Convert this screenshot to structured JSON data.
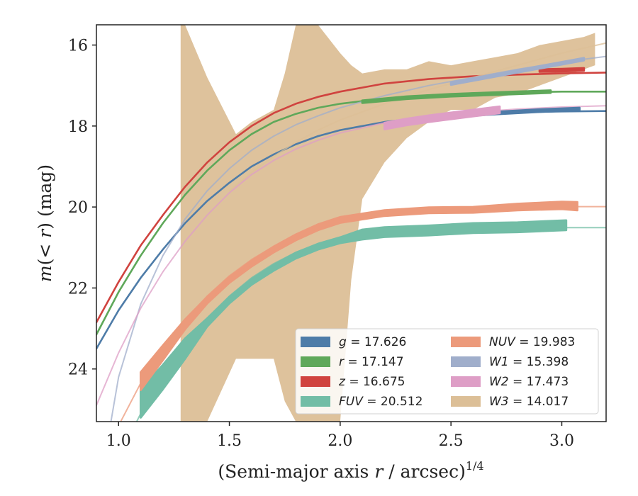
{
  "chart_data": {
    "type": "line",
    "xlabel_text": "(Semi-major axis ",
    "xlabel_var": "r",
    "xlabel_rest": " / arcsec)",
    "xlabel_sup": "1/4",
    "ylabel_pre": "m",
    "ylabel_mid": "(< ",
    "ylabel_var": "r",
    "ylabel_post": ") (mag)",
    "xlim": [
      0.9,
      3.2
    ],
    "ylim": [
      25.3,
      15.5
    ],
    "y_inverted": true,
    "xticks": [
      1.0,
      1.5,
      2.0,
      2.5,
      3.0
    ],
    "xtick_labels": [
      "1.0",
      "1.5",
      "2.0",
      "2.5",
      "3.0"
    ],
    "yticks": [
      16,
      18,
      20,
      22,
      24
    ],
    "ytick_labels": [
      "16",
      "18",
      "20",
      "22",
      "24"
    ],
    "grid": false,
    "legend_position": "lower-right",
    "series": [
      {
        "name": "g",
        "label_var": "g",
        "label_val": " = 17.626",
        "color": "#4e7ca8",
        "model_x": [
          0.9,
          1.0,
          1.1,
          1.2,
          1.3,
          1.4,
          1.5,
          1.6,
          1.7,
          1.8,
          1.9,
          2.0,
          2.2,
          2.4,
          2.6,
          2.8,
          3.0,
          3.2
        ],
        "model_y": [
          23.5,
          22.55,
          21.75,
          21.05,
          20.4,
          19.85,
          19.4,
          19.0,
          18.7,
          18.45,
          18.25,
          18.1,
          17.9,
          17.78,
          17.7,
          17.66,
          17.64,
          17.63
        ],
        "data_x": [
          2.5,
          2.7,
          2.9,
          3.08
        ],
        "data_y": [
          17.75,
          17.68,
          17.62,
          17.58
        ],
        "data_halfwidth": [
          0.03,
          0.03,
          0.03,
          0.03
        ]
      },
      {
        "name": "r",
        "label_var": "r",
        "label_val": " = 17.147",
        "color": "#5fa85a",
        "model_x": [
          0.9,
          1.0,
          1.1,
          1.2,
          1.3,
          1.4,
          1.5,
          1.6,
          1.7,
          1.8,
          1.9,
          2.0,
          2.2,
          2.4,
          2.6,
          2.8,
          3.0,
          3.2
        ],
        "model_y": [
          23.15,
          22.1,
          21.2,
          20.4,
          19.7,
          19.1,
          18.6,
          18.2,
          17.9,
          17.7,
          17.55,
          17.45,
          17.32,
          17.24,
          17.19,
          17.17,
          17.15,
          17.15
        ],
        "data_x": [
          2.1,
          2.3,
          2.5,
          2.7,
          2.95
        ],
        "data_y": [
          17.4,
          17.3,
          17.24,
          17.2,
          17.15
        ],
        "data_halfwidth": [
          0.03,
          0.03,
          0.03,
          0.03,
          0.03
        ]
      },
      {
        "name": "z",
        "label_var": "z",
        "label_val": " = 16.675",
        "color": "#d0433f",
        "model_x": [
          0.9,
          1.0,
          1.1,
          1.2,
          1.3,
          1.4,
          1.5,
          1.6,
          1.7,
          1.8,
          1.9,
          2.0,
          2.2,
          2.4,
          2.6,
          2.8,
          3.0,
          3.2
        ],
        "model_y": [
          22.85,
          21.85,
          20.95,
          20.2,
          19.5,
          18.9,
          18.4,
          18.0,
          17.68,
          17.45,
          17.28,
          17.15,
          16.95,
          16.84,
          16.77,
          16.73,
          16.7,
          16.68
        ],
        "data_x": [
          2.9,
          3.0,
          3.1
        ],
        "data_y": [
          16.63,
          16.62,
          16.6
        ],
        "data_halfwidth": [
          0.03,
          0.03,
          0.03
        ]
      },
      {
        "name": "FUV",
        "label_var": "FUV",
        "label_val": " = 20.512",
        "color": "#72bda6",
        "model_x": [
          1.0,
          1.1,
          1.2,
          1.3,
          1.4,
          1.5,
          1.6,
          1.7,
          1.8,
          1.9,
          2.0,
          2.2,
          2.4,
          2.6,
          2.8,
          3.0,
          3.2
        ],
        "model_y": [
          26.2,
          25.1,
          24.2,
          23.4,
          22.75,
          22.2,
          21.75,
          21.4,
          21.12,
          20.92,
          20.78,
          20.64,
          20.57,
          20.54,
          20.52,
          20.51,
          20.51
        ],
        "data_x": [
          1.1,
          1.2,
          1.3,
          1.4,
          1.5,
          1.6,
          1.7,
          1.8,
          1.9,
          2.0,
          2.1,
          2.2,
          2.4,
          2.6,
          2.8,
          3.02
        ],
        "data_y": [
          24.85,
          24.2,
          23.5,
          22.85,
          22.3,
          21.85,
          21.5,
          21.2,
          20.98,
          20.82,
          20.68,
          20.62,
          20.58,
          20.52,
          20.5,
          20.45
        ],
        "data_halfwidth": [
          0.35,
          0.3,
          0.25,
          0.1,
          0.08,
          0.07,
          0.07,
          0.07,
          0.07,
          0.07,
          0.12,
          0.12,
          0.12,
          0.12,
          0.12,
          0.12
        ]
      },
      {
        "name": "NUV",
        "label_var": "NUV",
        "label_val": " = 19.983",
        "color": "#ec9a7b",
        "model_x": [
          1.0,
          1.1,
          1.2,
          1.3,
          1.4,
          1.5,
          1.6,
          1.7,
          1.8,
          1.9,
          2.0,
          2.2,
          2.4,
          2.6,
          2.8,
          3.0,
          3.2
        ],
        "model_y": [
          25.4,
          24.35,
          23.5,
          22.8,
          22.2,
          21.7,
          21.3,
          20.97,
          20.7,
          20.5,
          20.35,
          20.17,
          20.07,
          20.02,
          20.0,
          19.99,
          19.99
        ],
        "data_x": [
          1.1,
          1.2,
          1.3,
          1.4,
          1.5,
          1.6,
          1.7,
          1.8,
          1.9,
          2.0,
          2.2,
          2.4,
          2.6,
          2.8,
          3.0,
          3.07
        ],
        "data_y": [
          24.3,
          23.6,
          22.9,
          22.3,
          21.8,
          21.4,
          21.05,
          20.75,
          20.5,
          20.32,
          20.15,
          20.08,
          20.07,
          20.0,
          19.96,
          19.98
        ],
        "data_halfwidth": [
          0.22,
          0.18,
          0.12,
          0.08,
          0.07,
          0.07,
          0.07,
          0.07,
          0.07,
          0.07,
          0.07,
          0.07,
          0.07,
          0.08,
          0.09,
          0.1
        ]
      },
      {
        "name": "W1",
        "label_var": "W1",
        "label_val": " = 15.398",
        "color": "#a0aecb",
        "model_x": [
          0.95,
          1.0,
          1.1,
          1.2,
          1.3,
          1.4,
          1.5,
          1.6,
          1.7,
          1.8,
          1.9,
          2.0,
          2.2,
          2.4,
          2.6,
          2.8,
          3.0,
          3.2
        ],
        "model_y": [
          25.8,
          24.2,
          22.4,
          21.2,
          20.3,
          19.6,
          19.05,
          18.6,
          18.25,
          17.97,
          17.75,
          17.55,
          17.25,
          17.0,
          16.8,
          16.6,
          16.42,
          16.28
        ],
        "data_x": [
          2.5,
          2.7,
          2.9,
          3.1
        ],
        "data_y": [
          16.95,
          16.75,
          16.55,
          16.35
        ],
        "data_halfwidth": [
          0.03,
          0.03,
          0.03,
          0.03
        ]
      },
      {
        "name": "W2",
        "label_var": "W2",
        "label_val": " = 17.473",
        "color": "#de9ec6",
        "model_x": [
          0.9,
          1.0,
          1.1,
          1.2,
          1.3,
          1.4,
          1.5,
          1.6,
          1.7,
          1.8,
          1.9,
          2.0,
          2.2,
          2.4,
          2.6,
          2.8,
          3.0,
          3.2
        ],
        "model_y": [
          24.9,
          23.6,
          22.5,
          21.6,
          20.85,
          20.2,
          19.65,
          19.2,
          18.85,
          18.57,
          18.35,
          18.17,
          17.92,
          17.76,
          17.66,
          17.58,
          17.53,
          17.5
        ],
        "data_x": [
          2.2,
          2.3,
          2.4,
          2.5,
          2.6,
          2.72
        ],
        "data_y": [
          18.0,
          17.9,
          17.82,
          17.75,
          17.68,
          17.6
        ],
        "data_halfwidth": [
          0.08,
          0.08,
          0.08,
          0.08,
          0.08,
          0.08
        ]
      },
      {
        "name": "W3",
        "label_var": "W3",
        "label_val": " = 14.017",
        "color": "#dcbf97",
        "model_x": [
          1.5,
          1.6,
          1.7,
          1.8,
          1.9,
          2.0,
          2.2,
          2.4,
          2.6,
          2.8,
          3.0,
          3.2
        ],
        "model_y": [
          19.6,
          19.15,
          18.75,
          18.4,
          18.1,
          17.85,
          17.45,
          17.1,
          16.8,
          16.5,
          16.2,
          15.95
        ],
        "band_x": [
          1.28,
          1.3,
          1.4,
          1.53,
          1.6,
          1.7,
          1.75,
          1.8,
          1.85,
          1.9,
          2.0,
          2.05,
          2.1,
          2.2,
          2.3,
          2.4,
          2.5,
          2.6,
          2.7,
          2.8,
          2.9,
          3.0,
          3.1,
          3.15
        ],
        "band_upper": [
          15.5,
          15.5,
          16.8,
          18.2,
          17.9,
          17.6,
          16.7,
          15.5,
          15.5,
          15.5,
          16.2,
          16.5,
          16.7,
          16.6,
          16.6,
          16.4,
          16.5,
          16.4,
          16.3,
          16.2,
          16.0,
          15.9,
          15.8,
          15.7
        ],
        "band_lower": [
          25.3,
          25.3,
          25.3,
          23.75,
          23.75,
          23.75,
          24.8,
          25.3,
          25.3,
          25.3,
          25.3,
          21.8,
          19.8,
          18.9,
          18.3,
          17.9,
          17.6,
          17.6,
          17.3,
          17.2,
          17.0,
          16.8,
          16.6,
          16.5
        ]
      }
    ]
  }
}
